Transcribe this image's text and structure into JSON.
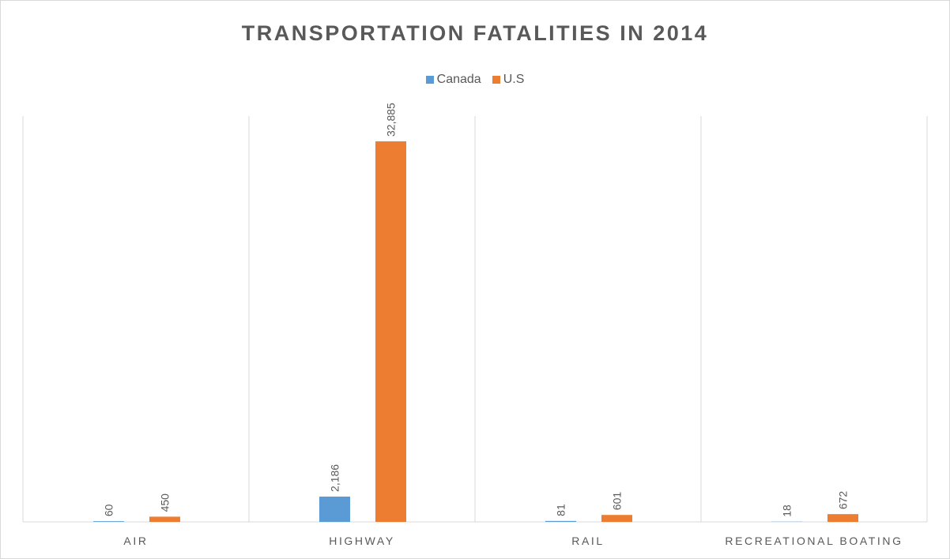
{
  "chart_data": {
    "type": "bar",
    "title": "TRANSPORTATION FATALITIES IN 2014",
    "categories": [
      "AIR",
      "HIGHWAY",
      "RAIL",
      "RECREATIONAL BOATING"
    ],
    "series": [
      {
        "name": "Canada",
        "values": [
          60,
          2186,
          81,
          18
        ],
        "labels": [
          "60",
          "2,186",
          "81",
          "18"
        ],
        "color": "#5b9bd5"
      },
      {
        "name": "U.S",
        "values": [
          450,
          32885,
          601,
          672
        ],
        "labels": [
          "450",
          "32,885",
          "601",
          "672"
        ],
        "color": "#ed7d31"
      }
    ],
    "xlabel": "",
    "ylabel": "",
    "ylim": [
      0,
      35000
    ],
    "grid": "vertical category separators",
    "legend": "top-center",
    "data_labels": "rotated vertical above bars"
  }
}
